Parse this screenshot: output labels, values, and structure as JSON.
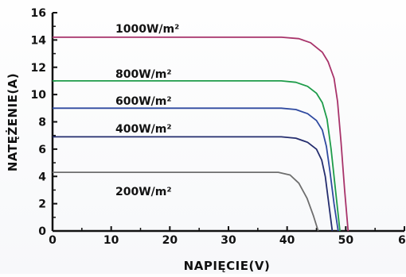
{
  "chart_data": {
    "type": "line",
    "xlabel": "NAPIĘCIE(V)",
    "ylabel": "NATĘŻENIE(A)",
    "xlim": [
      0,
      60
    ],
    "ylim": [
      0,
      16
    ],
    "xticks": [
      0,
      10,
      20,
      30,
      40,
      50,
      60
    ],
    "yticks": [
      0,
      2,
      4,
      6,
      8,
      10,
      12,
      14,
      16
    ],
    "grid": false,
    "series": [
      {
        "name": "1000W/m²",
        "color": "#a8336a",
        "x": [
          0,
          39,
          42,
          44,
          46,
          47,
          48,
          48.6,
          49.2,
          49.8,
          50.4
        ],
        "y": [
          14.2,
          14.2,
          14.1,
          13.8,
          13.1,
          12.4,
          11.2,
          9.5,
          6.5,
          3.0,
          0
        ]
      },
      {
        "name": "800W/m²",
        "color": "#1e9c4a",
        "x": [
          0,
          39,
          41.5,
          43.5,
          45,
          46,
          46.8,
          47.5,
          48.3,
          49
        ],
        "y": [
          11.0,
          11.0,
          10.9,
          10.6,
          10.1,
          9.4,
          8.2,
          6.0,
          2.8,
          0
        ]
      },
      {
        "name": "600W/m²",
        "color": "#2f4aa0",
        "x": [
          0,
          39,
          41.5,
          43.5,
          45,
          46,
          46.7,
          47.3,
          48,
          48.7
        ],
        "y": [
          9.0,
          9.0,
          8.9,
          8.6,
          8.1,
          7.4,
          6.2,
          4.4,
          2.0,
          0
        ]
      },
      {
        "name": "400W/m²",
        "color": "#242d6e",
        "x": [
          0,
          39,
          41.5,
          43.5,
          45,
          45.9,
          46.5,
          47.1,
          47.7
        ],
        "y": [
          6.9,
          6.9,
          6.8,
          6.5,
          6.0,
          5.2,
          4.0,
          2.0,
          0
        ]
      },
      {
        "name": "200W/m²",
        "color": "#6e6e6e",
        "x": [
          0,
          38.5,
          40.5,
          42,
          43.4,
          44.5,
          45.3
        ],
        "y": [
          4.3,
          4.3,
          4.1,
          3.5,
          2.4,
          1.1,
          0
        ]
      }
    ]
  }
}
